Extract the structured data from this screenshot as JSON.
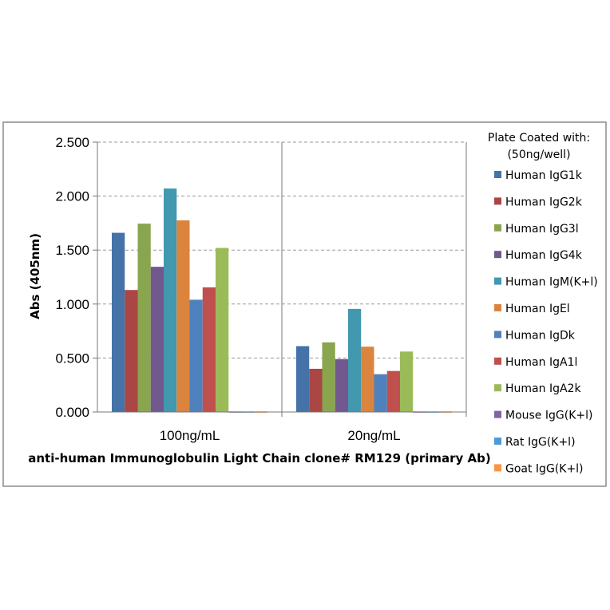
{
  "chart_data": {
    "type": "bar",
    "title": "",
    "xlabel": "anti-human Immunoglobulin Light Chain clone# RM129 (primary Ab)",
    "ylabel": "Abs (405nm)",
    "categories": [
      "100ng/mL",
      "20ng/mL"
    ],
    "ylim": [
      0,
      2.5
    ],
    "yticks": [
      "0.000",
      "0.500",
      "1.000",
      "1.500",
      "2.000",
      "2.500"
    ],
    "ytick_values": [
      0,
      0.5,
      1.0,
      1.5,
      2.0,
      2.5
    ],
    "grid": "horizontal dashed",
    "legend_title": [
      "Plate Coated with:",
      "(50ng/well)"
    ],
    "legend_position": "right",
    "series": [
      {
        "name": "Human IgG1k",
        "values": [
          1.66,
          0.61
        ],
        "color": "#4572A7"
      },
      {
        "name": "Human IgG2k",
        "values": [
          1.13,
          0.4
        ],
        "color": "#AA4643"
      },
      {
        "name": "Human IgG3l",
        "values": [
          1.745,
          0.645
        ],
        "color": "#89A54E"
      },
      {
        "name": "Human IgG4k",
        "values": [
          1.345,
          0.49
        ],
        "color": "#71588F"
      },
      {
        "name": "Human IgM(K+l)",
        "values": [
          2.07,
          0.955
        ],
        "color": "#4198AF"
      },
      {
        "name": "Human IgEl",
        "values": [
          1.775,
          0.605
        ],
        "color": "#DB843D"
      },
      {
        "name": "Human IgDk",
        "values": [
          1.04,
          0.35
        ],
        "color": "#4F81BD"
      },
      {
        "name": "Human IgA1l",
        "values": [
          1.155,
          0.38
        ],
        "color": "#C0504D"
      },
      {
        "name": "Human IgA2k",
        "values": [
          1.52,
          0.56
        ],
        "color": "#9BBB59"
      },
      {
        "name": "Mouse IgG(K+l)",
        "values": [
          0.005,
          0.005
        ],
        "color": "#8064A2"
      },
      {
        "name": "Rat IgG(K+l)",
        "values": [
          0.005,
          0.005
        ],
        "color": "#4F9AD6"
      },
      {
        "name": "Goat IgG(K+l)",
        "values": [
          0.005,
          0.005
        ],
        "color": "#F79646"
      }
    ]
  }
}
